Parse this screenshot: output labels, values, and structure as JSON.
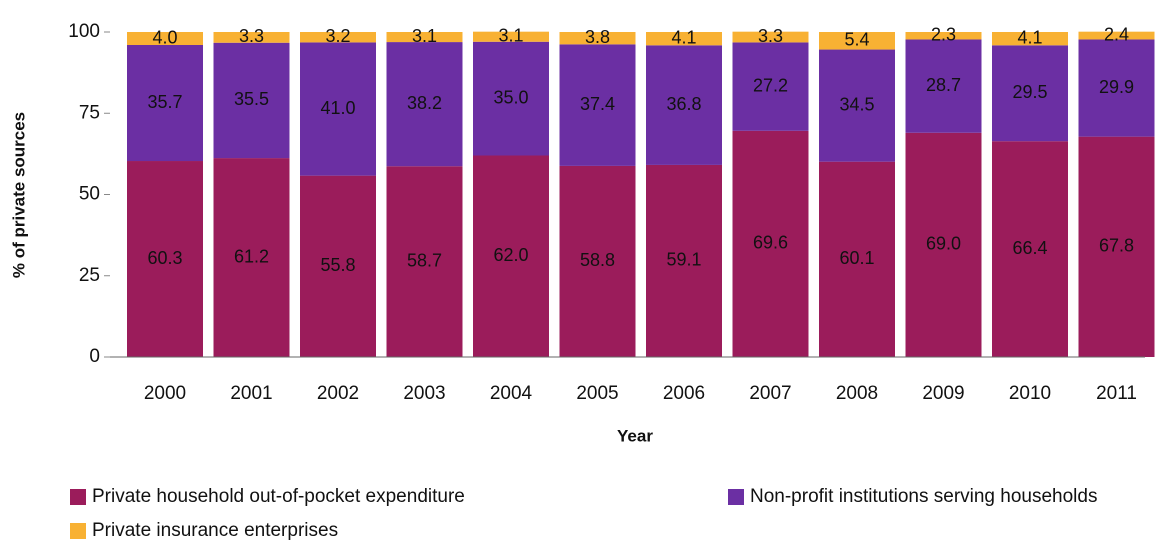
{
  "chart_data": {
    "type": "stacked_bar",
    "y_label": "% of private sources",
    "x_label": "Year",
    "categories": [
      "2000",
      "2001",
      "2002",
      "2003",
      "2004",
      "2005",
      "2006",
      "2007",
      "2008",
      "2009",
      "2010",
      "2011"
    ],
    "series": [
      {
        "name": "Private household out-of-pocket expenditure",
        "color": "#9b1c5b",
        "values": [
          60.3,
          61.2,
          55.8,
          58.7,
          62.0,
          58.8,
          59.1,
          69.6,
          60.1,
          69.0,
          66.4,
          67.8
        ],
        "value_labels": [
          "60.3",
          "61.2",
          "55.8",
          "58.7",
          "62.0",
          "58.8",
          "59.1",
          "69.6",
          "60.1",
          "69.0",
          "66.4",
          "67.8"
        ]
      },
      {
        "name": "Non-profit institutions serving households",
        "color": "#6b2fa3",
        "values": [
          35.7,
          35.5,
          41.0,
          38.2,
          35.0,
          37.4,
          36.8,
          27.2,
          34.5,
          28.7,
          29.5,
          29.9
        ],
        "value_labels": [
          "35.7",
          "35.5",
          "41.0",
          "38.2",
          "35.0",
          "37.4",
          "36.8",
          "27.2",
          "34.5",
          "28.7",
          "29.5",
          "29.9"
        ]
      },
      {
        "name": "Private insurance enterprises",
        "color": "#f8b133",
        "values": [
          4.0,
          3.3,
          3.2,
          3.1,
          3.1,
          3.8,
          4.1,
          3.3,
          5.4,
          2.3,
          4.1,
          2.4
        ],
        "value_labels": [
          "4.0",
          "3.3",
          "3.2",
          "3.1",
          "3.1",
          "3.8",
          "4.1",
          "3.3",
          "5.4",
          "2.3",
          "4.1",
          "2.4"
        ]
      }
    ],
    "ylim": [
      0,
      100
    ],
    "yticks": [
      0,
      25,
      50,
      75,
      100
    ],
    "grid": false
  }
}
